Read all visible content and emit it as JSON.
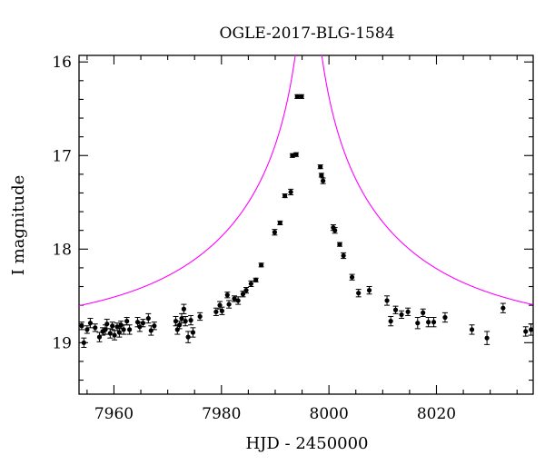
{
  "chart_data": {
    "type": "scatter",
    "title": "OGLE-2017-BLG-1584",
    "xlabel": "HJD - 2450000",
    "ylabel": "I magnitude",
    "xlim": [
      7953.5,
      8038
    ],
    "ylim": [
      19.55,
      15.93
    ],
    "y_inverted": true,
    "grid": false,
    "legend": "none",
    "x_major_ticks": [
      7960,
      7980,
      8000,
      8020
    ],
    "x_tick_labels": [
      "7960",
      "7980",
      "8000",
      "8020"
    ],
    "y_major_ticks": [
      16,
      17,
      18,
      19
    ],
    "y_tick_labels": [
      "16",
      "17",
      "18",
      "19"
    ],
    "colors": {
      "points": "#000000",
      "model": "#ff00ff"
    },
    "series": [
      {
        "kind": "points-with-errorbars",
        "x": [
          7954.0,
          7954.4,
          7955.0,
          7955.6,
          7956.5,
          7957.3,
          7957.9,
          7958.4,
          7958.7,
          7959.3,
          7959.7,
          7960.1,
          7960.6,
          7961.0,
          7961.3,
          7961.8,
          7962.4,
          7962.9,
          7964.4,
          7964.8,
          7965.4,
          7966.4,
          7966.9,
          7967.5,
          7971.5,
          7971.8,
          7972.2,
          7972.6,
          7973.0,
          7973.3,
          7973.8,
          7974.3,
          7974.7,
          7976.0,
          7979.0,
          7979.7,
          7980.1,
          7981.1,
          7981.4,
          7982.4,
          7983.1,
          7984.0,
          7984.6,
          7985.5,
          7986.4,
          7987.4,
          7989.9,
          7990.9,
          7991.8,
          7992.9,
          7993.2,
          7993.9,
          7994.1,
          7994.9,
          7998.4,
          7998.6,
          7998.9,
          8000.8,
          8001.1,
          8002.0,
          8002.7,
          8004.3,
          8005.5,
          8007.5,
          8010.8,
          8011.5,
          8012.4,
          8013.5,
          8014.7,
          8016.5,
          8017.5,
          8018.5,
          8019.5,
          8021.6,
          8026.6,
          8029.4,
          8032.4,
          8036.6,
          8037.6
        ],
        "y": [
          18.82,
          19.0,
          18.86,
          18.79,
          18.84,
          18.94,
          18.88,
          18.86,
          18.8,
          18.9,
          18.82,
          18.92,
          18.83,
          18.89,
          18.81,
          18.86,
          18.77,
          18.86,
          18.78,
          18.83,
          18.79,
          18.74,
          18.87,
          18.82,
          18.77,
          18.86,
          18.81,
          18.74,
          18.64,
          18.77,
          18.94,
          18.76,
          18.89,
          18.72,
          18.67,
          18.6,
          18.66,
          18.49,
          18.59,
          18.53,
          18.55,
          18.48,
          18.44,
          18.37,
          18.33,
          18.17,
          17.82,
          17.72,
          17.43,
          17.39,
          17.0,
          16.99,
          16.37,
          16.37,
          17.12,
          17.21,
          17.27,
          17.77,
          17.8,
          17.95,
          18.07,
          18.3,
          18.47,
          18.44,
          18.55,
          18.77,
          18.65,
          18.7,
          18.67,
          18.79,
          18.68,
          18.78,
          18.78,
          18.73,
          18.86,
          18.95,
          18.63,
          18.88,
          18.86
        ],
        "err": [
          0.04,
          0.05,
          0.04,
          0.05,
          0.04,
          0.05,
          0.04,
          0.05,
          0.05,
          0.05,
          0.04,
          0.05,
          0.04,
          0.05,
          0.04,
          0.05,
          0.04,
          0.05,
          0.05,
          0.05,
          0.04,
          0.05,
          0.05,
          0.04,
          0.05,
          0.05,
          0.04,
          0.05,
          0.05,
          0.05,
          0.06,
          0.05,
          0.05,
          0.04,
          0.04,
          0.04,
          0.04,
          0.03,
          0.04,
          0.03,
          0.04,
          0.03,
          0.03,
          0.03,
          0.02,
          0.02,
          0.03,
          0.02,
          0.02,
          0.03,
          0.02,
          0.02,
          0.02,
          0.02,
          0.02,
          0.02,
          0.03,
          0.03,
          0.03,
          0.02,
          0.03,
          0.03,
          0.04,
          0.04,
          0.05,
          0.05,
          0.04,
          0.04,
          0.04,
          0.06,
          0.04,
          0.05,
          0.05,
          0.05,
          0.05,
          0.07,
          0.05,
          0.05,
          0.06
        ]
      },
      {
        "kind": "model-curve",
        "t0": 7996.2,
        "u0": 0.018,
        "tE": 38.0,
        "baseline": 18.86
      }
    ]
  }
}
